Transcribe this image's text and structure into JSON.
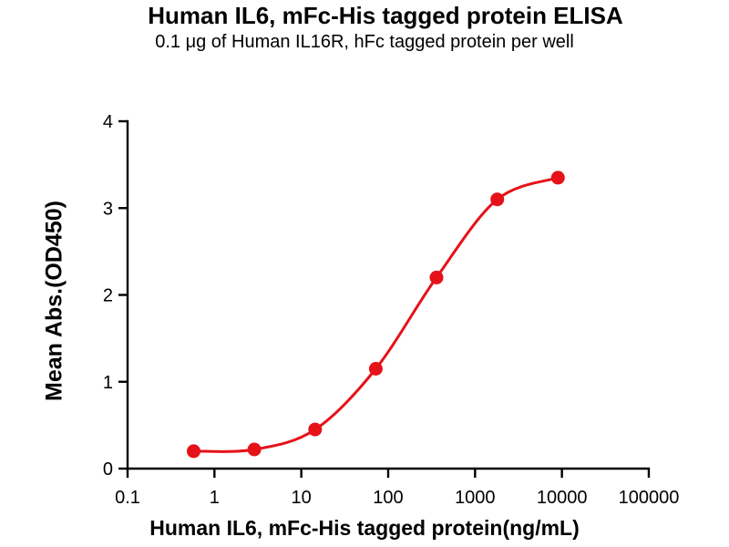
{
  "chart_data": {
    "type": "line",
    "title": "Human IL6, mFc-His tagged protein ELISA",
    "subtitle": "0.1 μg of Human IL16R, hFc tagged protein per well",
    "xlabel": "Human IL6, mFc-His tagged protein(ng/mL)",
    "ylabel": "Mean Abs.(OD450)",
    "x_scale": "log10",
    "xlim": [
      0.1,
      100000
    ],
    "ylim": [
      0,
      4
    ],
    "x_ticks": [
      "0.1",
      "1",
      "10",
      "100",
      "1000",
      "10000",
      "100000"
    ],
    "y_ticks": [
      "0",
      "1",
      "2",
      "3",
      "4"
    ],
    "grid": false,
    "legend_position": "none",
    "series": [
      {
        "name": "Human IL6, mFc-His tagged protein",
        "marker": "circle",
        "color": "#e61219",
        "x": [
          0.576,
          2.88,
          14.4,
          72,
          360,
          1800,
          9000
        ],
        "y": [
          0.2,
          0.22,
          0.45,
          1.15,
          2.2,
          3.1,
          3.35
        ]
      }
    ]
  },
  "colors": {
    "curve": "#e61219",
    "axis": "#000000",
    "background": "#ffffff"
  }
}
